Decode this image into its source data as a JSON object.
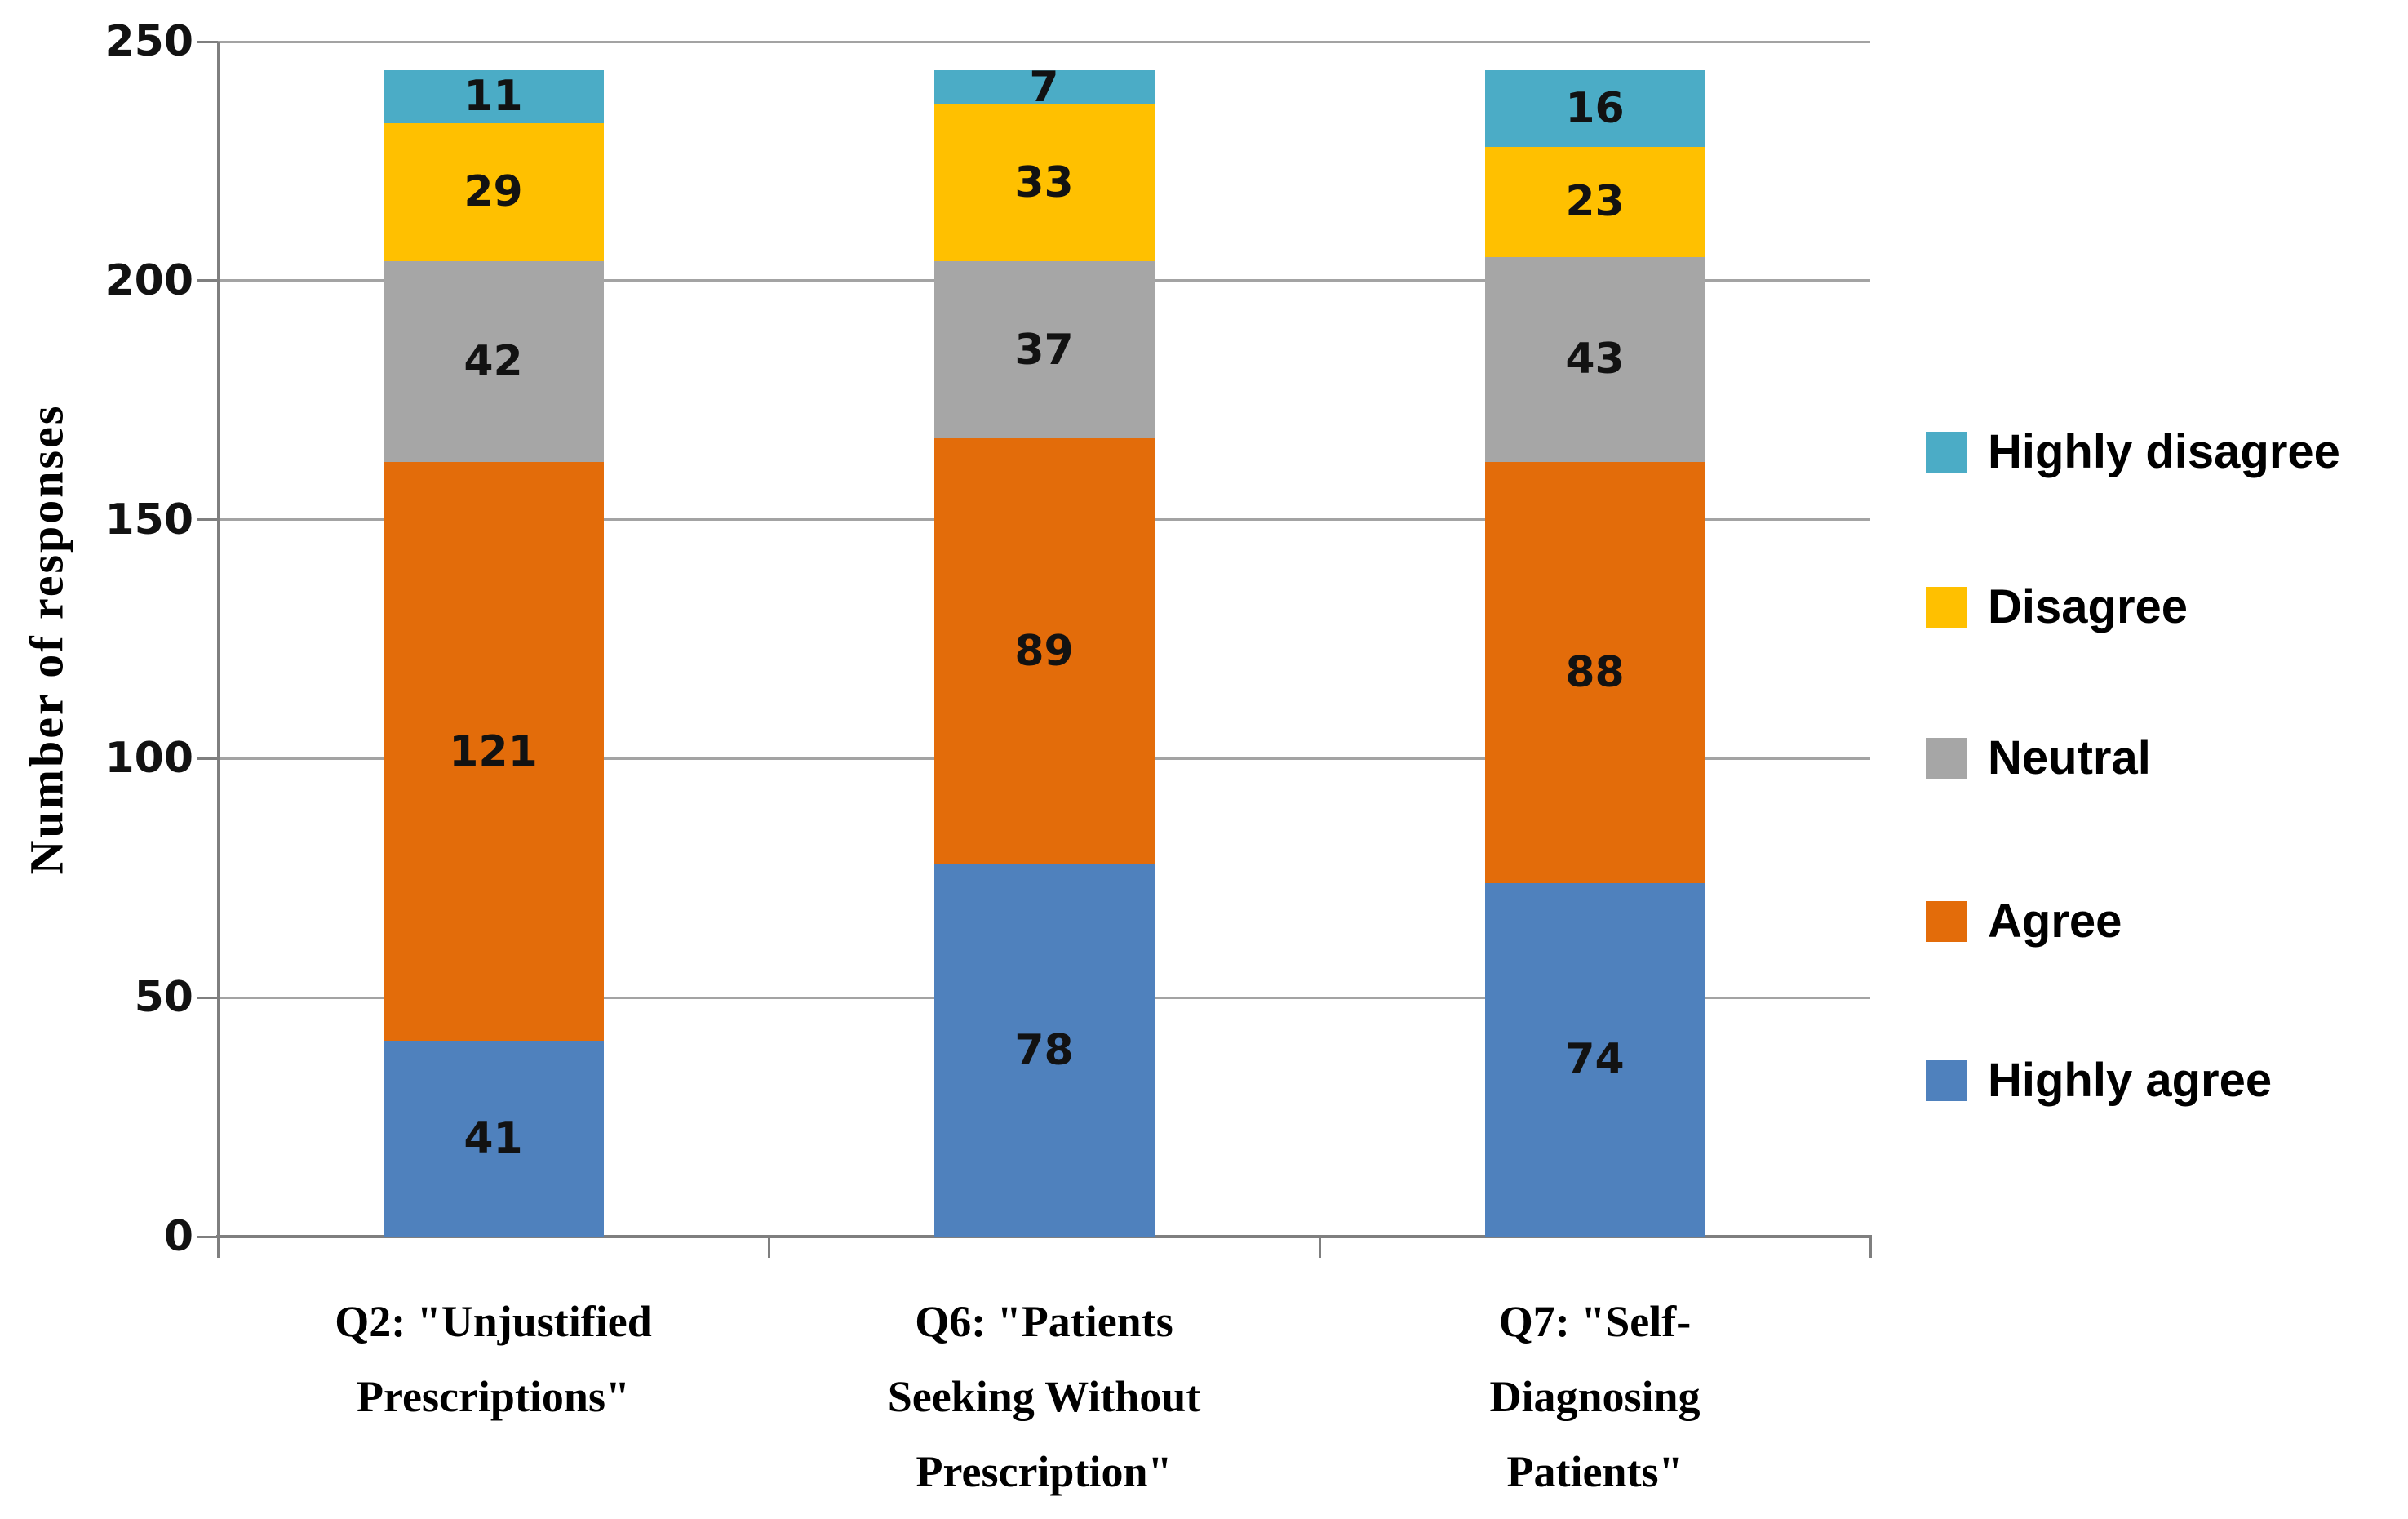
{
  "chart_data": {
    "type": "bar",
    "variant": "stacked-column",
    "title": "",
    "xlabel": "",
    "ylabel": "Number of responses",
    "ylim": [
      0,
      250
    ],
    "yticks": [
      0,
      50,
      100,
      150,
      200,
      250
    ],
    "grid": "horizontal",
    "legend_position": "right",
    "legend_top_to_bottom": [
      "Highly disagree",
      "Disagree",
      "Neutral",
      "Agree",
      "Highly agree"
    ],
    "categories": [
      "Q2: \"Unjustified\nPrescriptions\"",
      "Q6: \"Patients\nSeeking Without\nPrescription\"",
      "Q7: \"Self-\nDiagnosing\nPatients\""
    ],
    "series": [
      {
        "name": "Highly agree",
        "color": "#4F81BD",
        "values": [
          41,
          78,
          74
        ]
      },
      {
        "name": "Agree",
        "color": "#E36C0A",
        "values": [
          121,
          89,
          88
        ]
      },
      {
        "name": "Neutral",
        "color": "#A6A6A6",
        "values": [
          42,
          37,
          43
        ]
      },
      {
        "name": "Disagree",
        "color": "#FFC000",
        "values": [
          29,
          33,
          23
        ]
      },
      {
        "name": "Highly disagree",
        "color": "#4BACC6",
        "values": [
          11,
          7,
          16
        ]
      }
    ]
  },
  "styles": {
    "gridline_color": "#A3A3A3",
    "axis_color": "#7F7F7F",
    "data_label_color": "#121212",
    "background": "#FFFFFF"
  }
}
